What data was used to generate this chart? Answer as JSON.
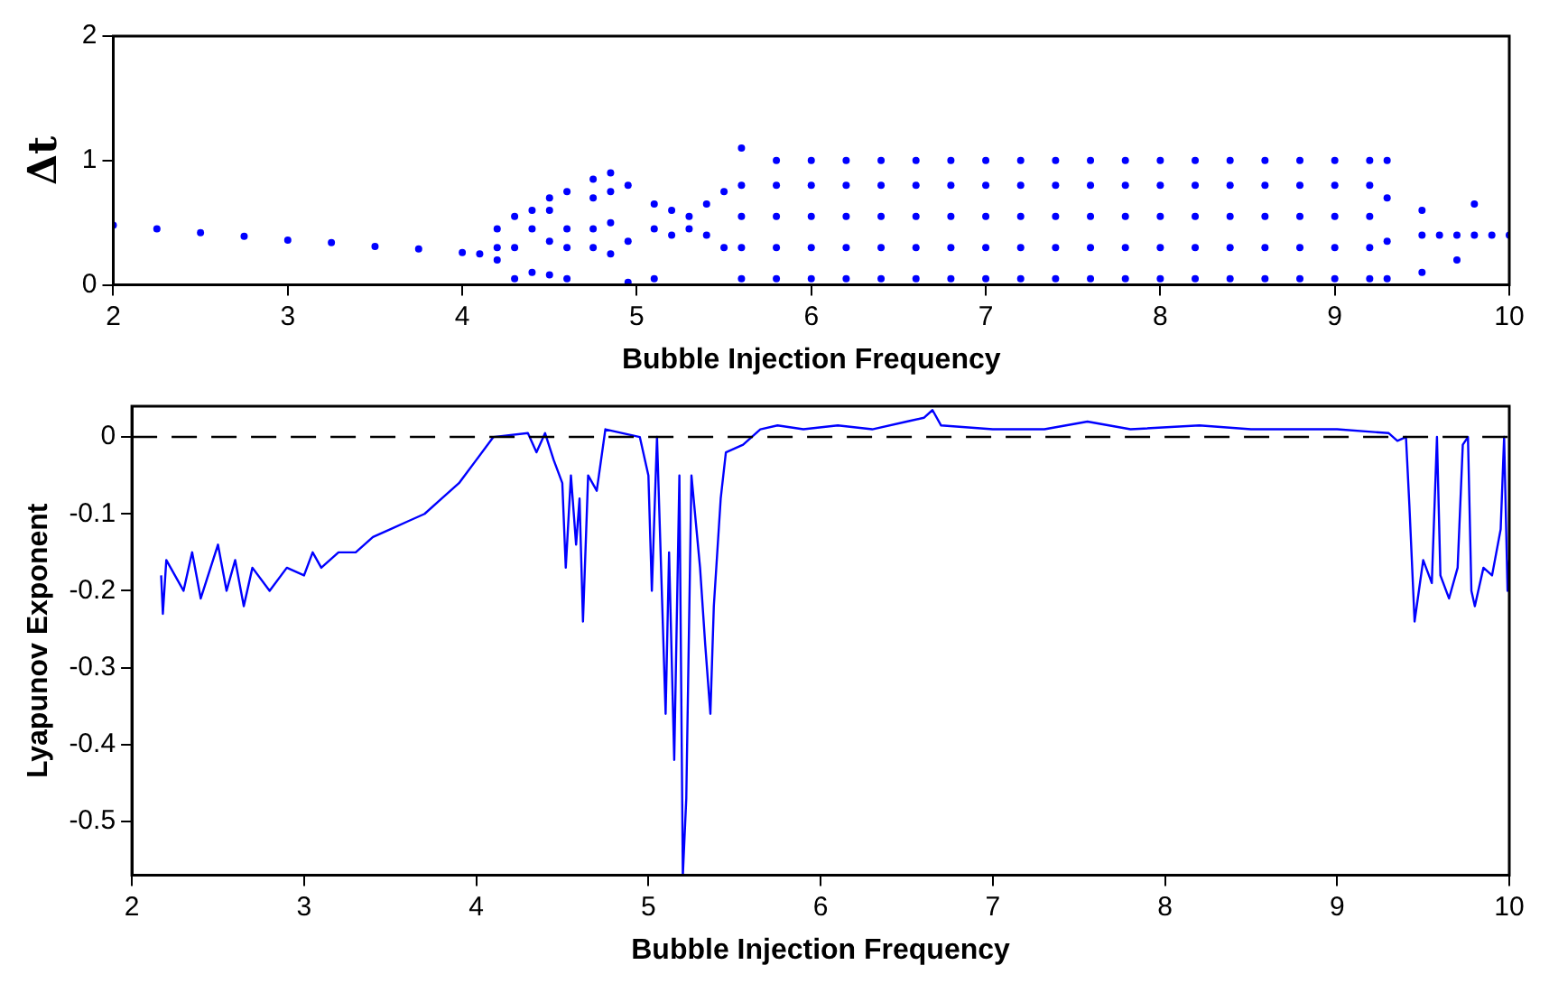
{
  "chart_data": [
    {
      "type": "scatter",
      "xlabel": "Bubble Injection Frequency",
      "ylabel": "Δt",
      "xlim": [
        2,
        10
      ],
      "xticks": [
        2,
        3,
        4,
        5,
        6,
        7,
        8,
        9,
        10
      ],
      "ylim": [
        0,
        2
      ],
      "yticks": [
        0,
        1,
        2
      ],
      "grid": false,
      "legend": false,
      "marker": "circle",
      "series": [
        {
          "color": "#0000ff",
          "x": [
            2.0,
            2.25,
            2.5,
            2.75,
            3.0,
            3.25,
            3.5,
            3.75,
            4.0,
            4.1,
            4.2,
            4.2,
            4.2,
            4.3,
            4.3,
            4.3,
            4.4,
            4.4,
            4.4,
            4.5,
            4.5,
            4.5,
            4.5,
            4.6,
            4.6,
            4.6,
            4.6,
            4.75,
            4.75,
            4.75,
            4.75,
            4.85,
            4.85,
            4.85,
            4.85,
            4.95,
            4.95,
            4.95,
            5.1,
            5.1,
            5.1,
            5.2,
            5.2,
            5.3,
            5.3,
            5.4,
            5.4,
            5.5,
            5.5,
            5.6,
            5.6,
            5.6,
            5.6,
            5.6,
            5.8,
            5.8,
            5.8,
            5.8,
            5.8,
            6.0,
            6.0,
            6.0,
            6.0,
            6.0,
            6.2,
            6.2,
            6.2,
            6.2,
            6.2,
            6.4,
            6.4,
            6.4,
            6.4,
            6.4,
            6.6,
            6.6,
            6.6,
            6.6,
            6.6,
            6.8,
            6.8,
            6.8,
            6.8,
            6.8,
            7.0,
            7.0,
            7.0,
            7.0,
            7.0,
            7.2,
            7.2,
            7.2,
            7.2,
            7.2,
            7.4,
            7.4,
            7.4,
            7.4,
            7.4,
            7.6,
            7.6,
            7.6,
            7.6,
            7.6,
            7.8,
            7.8,
            7.8,
            7.8,
            7.8,
            8.0,
            8.0,
            8.0,
            8.0,
            8.0,
            8.2,
            8.2,
            8.2,
            8.2,
            8.2,
            8.4,
            8.4,
            8.4,
            8.4,
            8.4,
            8.6,
            8.6,
            8.6,
            8.6,
            8.6,
            8.8,
            8.8,
            8.8,
            8.8,
            8.8,
            9.0,
            9.0,
            9.0,
            9.0,
            9.0,
            9.2,
            9.2,
            9.2,
            9.2,
            9.2,
            9.3,
            9.3,
            9.3,
            9.3,
            9.5,
            9.5,
            9.5,
            9.6,
            9.7,
            9.7,
            9.8,
            9.8,
            9.9,
            10.0
          ],
          "values": [
            0.48,
            0.45,
            0.42,
            0.39,
            0.36,
            0.34,
            0.31,
            0.29,
            0.26,
            0.25,
            0.2,
            0.3,
            0.45,
            0.05,
            0.3,
            0.55,
            0.1,
            0.45,
            0.6,
            0.08,
            0.35,
            0.6,
            0.7,
            0.05,
            0.3,
            0.45,
            0.75,
            0.3,
            0.45,
            0.7,
            0.85,
            0.25,
            0.5,
            0.75,
            0.9,
            0.02,
            0.35,
            0.8,
            0.05,
            0.45,
            0.65,
            0.4,
            0.6,
            0.45,
            0.55,
            0.4,
            0.65,
            0.3,
            0.75,
            0.05,
            0.3,
            0.55,
            0.8,
            1.1,
            0.05,
            0.3,
            0.55,
            0.8,
            1.0,
            0.05,
            0.3,
            0.55,
            0.8,
            1.0,
            0.05,
            0.3,
            0.55,
            0.8,
            1.0,
            0.05,
            0.3,
            0.55,
            0.8,
            1.0,
            0.05,
            0.3,
            0.55,
            0.8,
            1.0,
            0.05,
            0.3,
            0.55,
            0.8,
            1.0,
            0.05,
            0.3,
            0.55,
            0.8,
            1.0,
            0.05,
            0.3,
            0.55,
            0.8,
            1.0,
            0.05,
            0.3,
            0.55,
            0.8,
            1.0,
            0.05,
            0.3,
            0.55,
            0.8,
            1.0,
            0.05,
            0.3,
            0.55,
            0.8,
            1.0,
            0.05,
            0.3,
            0.55,
            0.8,
            1.0,
            0.05,
            0.3,
            0.55,
            0.8,
            1.0,
            0.05,
            0.3,
            0.55,
            0.8,
            1.0,
            0.05,
            0.3,
            0.55,
            0.8,
            1.0,
            0.05,
            0.3,
            0.55,
            0.8,
            1.0,
            0.05,
            0.3,
            0.55,
            0.8,
            1.0,
            0.05,
            0.3,
            0.55,
            0.8,
            1.0,
            0.05,
            0.35,
            0.7,
            1.0,
            0.1,
            0.4,
            0.6,
            0.4,
            0.2,
            0.4,
            0.4,
            0.65,
            0.4,
            0.4
          ]
        }
      ]
    },
    {
      "type": "line",
      "xlabel": "Bubble Injection Frequency",
      "ylabel": "Lyapunov Exponent",
      "xlim": [
        2,
        10
      ],
      "xticks": [
        2,
        3,
        4,
        5,
        6,
        7,
        8,
        9,
        10
      ],
      "ylim": [
        -0.57,
        0.04
      ],
      "yticks": [
        {
          "value": -0.5,
          "label": "-0.5"
        },
        {
          "value": -0.4,
          "label": "-0.4"
        },
        {
          "value": -0.3,
          "label": "-0.3"
        },
        {
          "value": -0.2,
          "label": "-0.2"
        },
        {
          "value": -0.1,
          "label": "-0.1"
        },
        0
      ],
      "grid": false,
      "legend": false,
      "marker": "none",
      "line_style": "solid",
      "ref_lines": [
        {
          "axis": "y",
          "value": 0,
          "color": "#000000",
          "line_style": "dashed"
        }
      ],
      "series": [
        {
          "color": "#0000ff",
          "x": [
            2.17,
            2.18,
            2.2,
            2.3,
            2.35,
            2.4,
            2.5,
            2.55,
            2.6,
            2.65,
            2.7,
            2.8,
            2.9,
            3.0,
            3.05,
            3.1,
            3.2,
            3.3,
            3.4,
            3.5,
            3.6,
            3.7,
            3.8,
            3.9,
            4.0,
            4.1,
            4.3,
            4.35,
            4.4,
            4.45,
            4.5,
            4.52,
            4.55,
            4.58,
            4.6,
            4.62,
            4.65,
            4.7,
            4.75,
            4.85,
            4.95,
            5.0,
            5.02,
            5.05,
            5.1,
            5.12,
            5.15,
            5.18,
            5.2,
            5.22,
            5.25,
            5.3,
            5.33,
            5.36,
            5.38,
            5.42,
            5.45,
            5.55,
            5.65,
            5.75,
            5.9,
            6.1,
            6.3,
            6.5,
            6.6,
            6.65,
            6.7,
            7.0,
            7.3,
            7.55,
            7.8,
            8.2,
            8.5,
            9.0,
            9.3,
            9.35,
            9.4,
            9.42,
            9.45,
            9.5,
            9.55,
            9.58,
            9.6,
            9.65,
            9.7,
            9.73,
            9.76,
            9.78,
            9.8,
            9.85,
            9.9,
            9.95,
            9.97,
            9.99,
            10.0
          ],
          "values": [
            -0.18,
            -0.23,
            -0.16,
            -0.2,
            -0.15,
            -0.21,
            -0.14,
            -0.2,
            -0.16,
            -0.22,
            -0.17,
            -0.2,
            -0.17,
            -0.18,
            -0.15,
            -0.17,
            -0.15,
            -0.15,
            -0.13,
            -0.12,
            -0.11,
            -0.1,
            -0.08,
            -0.06,
            -0.03,
            0,
            0.005,
            -0.02,
            0.005,
            -0.03,
            -0.06,
            -0.17,
            -0.05,
            -0.14,
            -0.08,
            -0.24,
            -0.05,
            -0.07,
            0.01,
            0.005,
            0,
            -0.05,
            -0.2,
            0,
            -0.36,
            -0.15,
            -0.42,
            -0.05,
            -0.57,
            -0.47,
            -0.05,
            -0.17,
            -0.27,
            -0.36,
            -0.22,
            -0.08,
            -0.02,
            -0.01,
            0.01,
            0.015,
            0.01,
            0.015,
            0.01,
            0.02,
            0.025,
            0.035,
            0.015,
            0.01,
            0.01,
            0.02,
            0.01,
            0.015,
            0.01,
            0.01,
            0.005,
            -0.005,
            0,
            -0.09,
            -0.24,
            -0.16,
            -0.19,
            0,
            -0.18,
            -0.21,
            -0.17,
            -0.01,
            0,
            -0.2,
            -0.22,
            -0.17,
            -0.18,
            -0.12,
            0,
            -0.2,
            -0.16
          ]
        }
      ]
    }
  ]
}
